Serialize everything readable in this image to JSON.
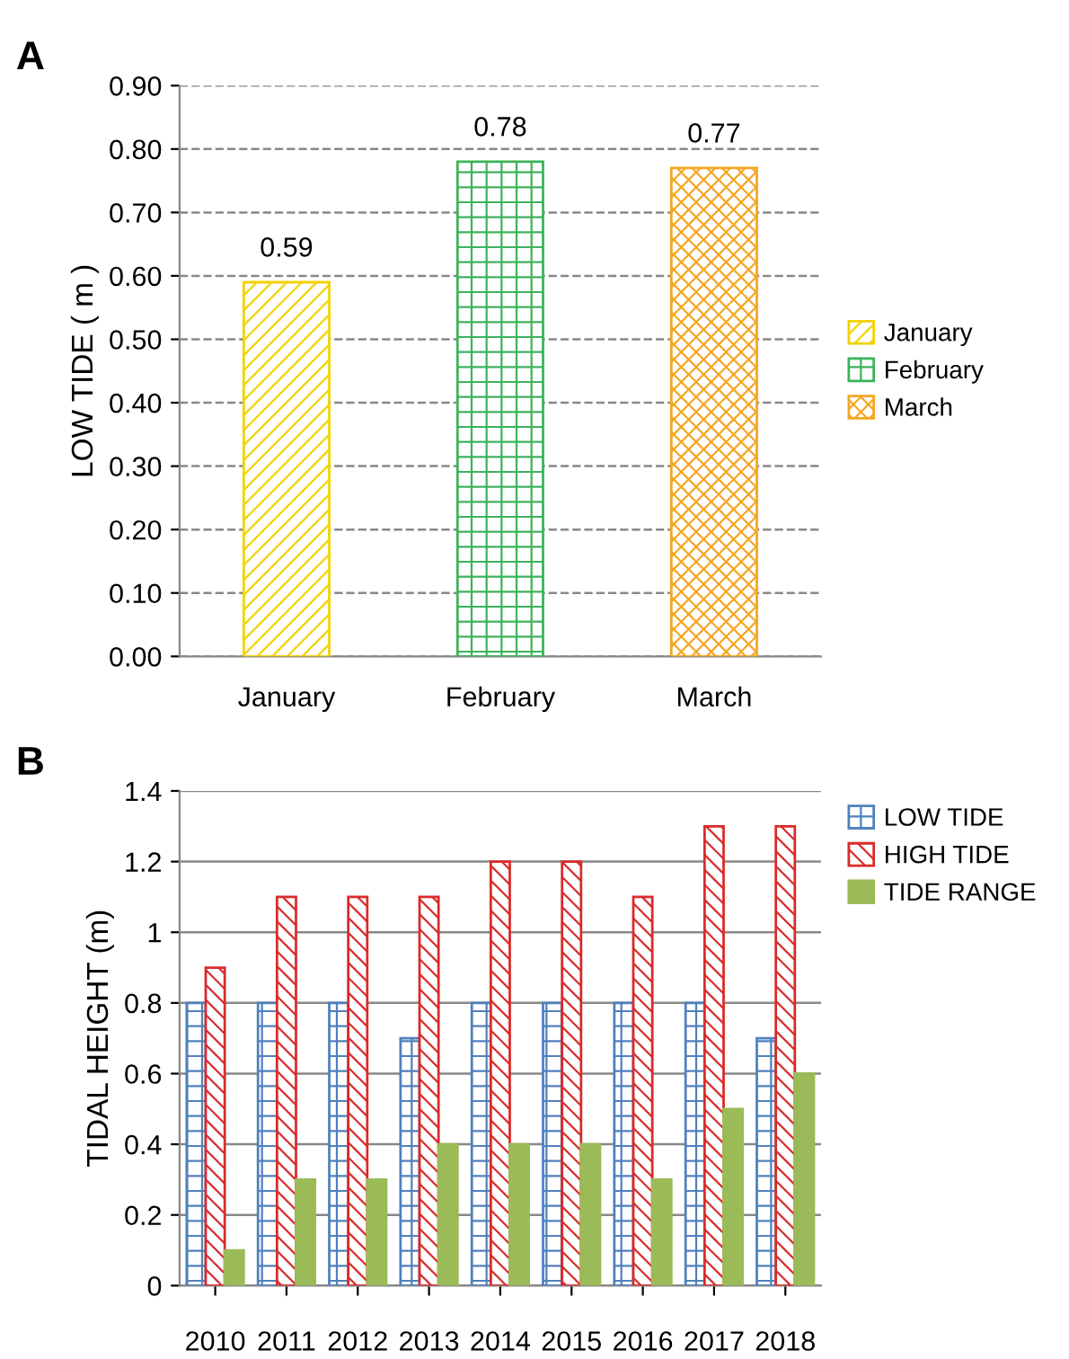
{
  "chart_data": [
    {
      "type": "bar",
      "title": "A",
      "ylabel": "LOW TIDE ( m )",
      "categories": [
        "January",
        "February",
        "March"
      ],
      "series": [
        {
          "name": "January",
          "color": "#f2d200",
          "values": [
            0.59,
            null,
            null
          ]
        },
        {
          "name": "February",
          "color": "#3cb35a",
          "values": [
            null,
            0.78,
            null
          ]
        },
        {
          "name": "March",
          "color": "#f5a623",
          "values": [
            null,
            null,
            0.77
          ]
        }
      ],
      "data_labels": true,
      "ylim": [
        0,
        0.9
      ],
      "yticks": [
        {
          "value": 0,
          "label": "0.00"
        },
        {
          "value": 0.1,
          "label": "0.10"
        },
        {
          "value": 0.2,
          "label": "0.20"
        },
        {
          "value": 0.3,
          "label": "0.30"
        },
        {
          "value": 0.4,
          "label": "0.40"
        },
        {
          "value": 0.5,
          "label": "0.50"
        },
        {
          "value": 0.6,
          "label": "0.60"
        },
        {
          "value": 0.7,
          "label": "0.70"
        },
        {
          "value": 0.8,
          "label": "0.80"
        },
        {
          "value": 0.9,
          "label": "0.90"
        }
      ],
      "grid": "y",
      "legend": "right"
    },
    {
      "type": "bar",
      "title": "B",
      "ylabel": "TIDAL HEIGHT (m)",
      "categories": [
        "2010",
        "2011",
        "2012",
        "2013",
        "2014",
        "2015",
        "2016",
        "2017",
        "2018"
      ],
      "series": [
        {
          "name": "LOW TIDE",
          "color": "#4f81bd",
          "values": [
            0.8,
            0.8,
            0.8,
            0.7,
            0.8,
            0.8,
            0.8,
            0.8,
            0.7
          ]
        },
        {
          "name": "HIGH TIDE",
          "color": "#d92b2b",
          "values": [
            0.9,
            1.1,
            1.1,
            1.1,
            1.2,
            1.2,
            1.1,
            1.3,
            1.3
          ]
        },
        {
          "name": "TIDE RANGE",
          "color": "#9bbb59",
          "values": [
            0.1,
            0.3,
            0.3,
            0.4,
            0.4,
            0.4,
            0.3,
            0.5,
            0.6
          ]
        }
      ],
      "ylim": [
        0,
        1.4
      ],
      "yticks": [
        0,
        0.2,
        0.4,
        0.6,
        0.8,
        1,
        1.2,
        1.4
      ],
      "grid": "y",
      "legend": "top right"
    }
  ]
}
